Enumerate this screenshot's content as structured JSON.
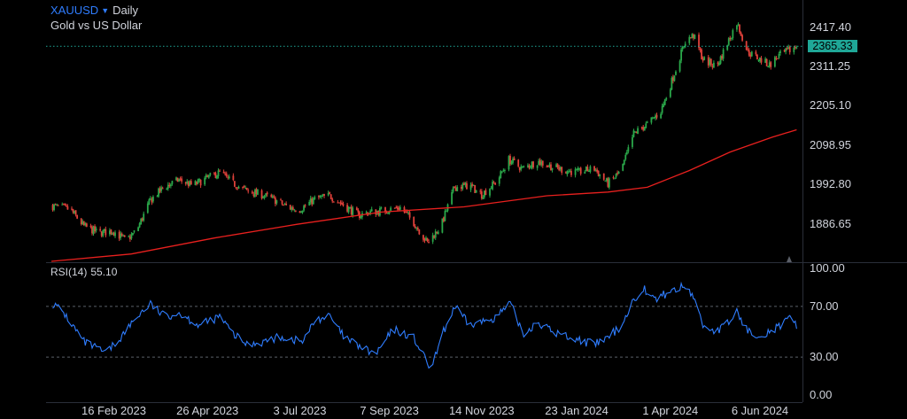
{
  "header": {
    "symbol": "XAUUSD",
    "interval": "Daily",
    "name": "Gold vs US Dollar",
    "rsi_label": "RSI(14)",
    "rsi_value": "55.10"
  },
  "colors": {
    "up": "#2aa84a",
    "down": "#e0413a",
    "ma": "#e8201e",
    "rsi": "#2f7dff",
    "last_price": "#1fa797",
    "grid_dash": "#5b5f68"
  },
  "chart_data": [
    {
      "type": "candlestick",
      "title": "XAUUSD Daily",
      "subtitle": "Gold vs US Dollar",
      "ylim": [
        1835,
        2470
      ],
      "y_ticks": [
        "2417.40",
        "2311.25",
        "2205.10",
        "2098.95",
        "1992.80",
        "1886.65"
      ],
      "last_price": "2365.33",
      "x_ticks": [
        "16 Feb 2023",
        "26 Apr 2023",
        "3 Jul 2023",
        "7 Sep 2023",
        "14 Nov 2023",
        "23 Jan 2024",
        "1 Apr 2024",
        "6 Jun 2024"
      ],
      "close_path": [
        [
          "2023-01-01",
          1935
        ],
        [
          "2023-01-15",
          1925
        ],
        [
          "2023-01-25",
          1880
        ],
        [
          "2023-02-05",
          1862
        ],
        [
          "2023-02-16",
          1866
        ],
        [
          "2023-02-25",
          1840
        ],
        [
          "2023-03-05",
          1870
        ],
        [
          "2023-03-15",
          1950
        ],
        [
          "2023-03-25",
          1985
        ],
        [
          "2023-04-05",
          2005
        ],
        [
          "2023-04-15",
          1990
        ],
        [
          "2023-04-26",
          2010
        ],
        [
          "2023-05-05",
          2025
        ],
        [
          "2023-05-15",
          1995
        ],
        [
          "2023-05-25",
          1975
        ],
        [
          "2023-06-05",
          1965
        ],
        [
          "2023-06-15",
          1950
        ],
        [
          "2023-06-25",
          1930
        ],
        [
          "2023-07-03",
          1925
        ],
        [
          "2023-07-15",
          1955
        ],
        [
          "2023-07-25",
          1962
        ],
        [
          "2023-08-05",
          1935
        ],
        [
          "2023-08-15",
          1910
        ],
        [
          "2023-08-25",
          1918
        ],
        [
          "2023-09-07",
          1925
        ],
        [
          "2023-09-15",
          1930
        ],
        [
          "2023-09-25",
          1890
        ],
        [
          "2023-10-05",
          1835
        ],
        [
          "2023-10-15",
          1880
        ],
        [
          "2023-10-25",
          1985
        ],
        [
          "2023-11-05",
          1990
        ],
        [
          "2023-11-14",
          1965
        ],
        [
          "2023-11-25",
          2000
        ],
        [
          "2023-12-04",
          2060
        ],
        [
          "2023-12-14",
          2035
        ],
        [
          "2023-12-25",
          2055
        ],
        [
          "2024-01-05",
          2040
        ],
        [
          "2024-01-15",
          2030
        ],
        [
          "2024-01-23",
          2025
        ],
        [
          "2024-02-05",
          2035
        ],
        [
          "2024-02-15",
          1995
        ],
        [
          "2024-02-25",
          2030
        ],
        [
          "2024-03-05",
          2130
        ],
        [
          "2024-03-15",
          2155
        ],
        [
          "2024-03-25",
          2190
        ],
        [
          "2024-04-01",
          2260
        ],
        [
          "2024-04-12",
          2380
        ],
        [
          "2024-04-18",
          2395
        ],
        [
          "2024-04-25",
          2330
        ],
        [
          "2024-05-05",
          2310
        ],
        [
          "2024-05-15",
          2390
        ],
        [
          "2024-05-20",
          2430
        ],
        [
          "2024-05-28",
          2350
        ],
        [
          "2024-06-06",
          2330
        ],
        [
          "2024-06-13",
          2315
        ],
        [
          "2024-06-20",
          2340
        ],
        [
          "2024-06-28",
          2355
        ],
        [
          "2024-07-03",
          2365
        ]
      ],
      "ma_path": [
        [
          "2023-01-01",
          1785
        ],
        [
          "2023-03-01",
          1805
        ],
        [
          "2023-05-01",
          1848
        ],
        [
          "2023-07-01",
          1885
        ],
        [
          "2023-09-01",
          1918
        ],
        [
          "2023-11-01",
          1932
        ],
        [
          "2024-01-01",
          1962
        ],
        [
          "2024-02-15",
          1972
        ],
        [
          "2024-03-15",
          1985
        ],
        [
          "2024-04-15",
          2030
        ],
        [
          "2024-05-15",
          2080
        ],
        [
          "2024-06-15",
          2120
        ],
        [
          "2024-07-03",
          2140
        ]
      ]
    },
    {
      "type": "line",
      "title": "RSI(14)",
      "ylim": [
        0,
        100
      ],
      "y_ticks": [
        "100.00",
        "70.00",
        "30.00",
        "0.00"
      ],
      "levels": [
        70,
        30
      ],
      "current": 55.1,
      "rsi_path": [
        [
          "2023-01-01",
          73
        ],
        [
          "2023-01-10",
          65
        ],
        [
          "2023-01-25",
          42
        ],
        [
          "2023-02-10",
          33
        ],
        [
          "2023-02-20",
          44
        ],
        [
          "2023-03-05",
          62
        ],
        [
          "2023-03-15",
          72
        ],
        [
          "2023-03-25",
          62
        ],
        [
          "2023-04-05",
          65
        ],
        [
          "2023-04-20",
          55
        ],
        [
          "2023-05-05",
          62
        ],
        [
          "2023-05-15",
          48
        ],
        [
          "2023-05-25",
          40
        ],
        [
          "2023-06-05",
          42
        ],
        [
          "2023-06-20",
          46
        ],
        [
          "2023-07-05",
          42
        ],
        [
          "2023-07-15",
          60
        ],
        [
          "2023-07-25",
          62
        ],
        [
          "2023-08-05",
          45
        ],
        [
          "2023-08-20",
          36
        ],
        [
          "2023-08-28",
          32
        ],
        [
          "2023-09-10",
          52
        ],
        [
          "2023-09-25",
          45
        ],
        [
          "2023-10-05",
          25
        ],
        [
          "2023-10-08",
          20
        ],
        [
          "2023-10-15",
          45
        ],
        [
          "2023-10-25",
          70
        ],
        [
          "2023-11-05",
          55
        ],
        [
          "2023-11-15",
          58
        ],
        [
          "2023-11-25",
          62
        ],
        [
          "2023-12-05",
          72
        ],
        [
          "2023-12-15",
          48
        ],
        [
          "2023-12-25",
          58
        ],
        [
          "2024-01-05",
          50
        ],
        [
          "2024-01-20",
          45
        ],
        [
          "2024-02-05",
          40
        ],
        [
          "2024-02-15",
          45
        ],
        [
          "2024-02-25",
          55
        ],
        [
          "2024-03-05",
          75
        ],
        [
          "2024-03-12",
          85
        ],
        [
          "2024-03-20",
          75
        ],
        [
          "2024-04-01",
          82
        ],
        [
          "2024-04-12",
          86
        ],
        [
          "2024-04-18",
          78
        ],
        [
          "2024-04-25",
          55
        ],
        [
          "2024-05-05",
          50
        ],
        [
          "2024-05-15",
          58
        ],
        [
          "2024-05-20",
          66
        ],
        [
          "2024-05-28",
          50
        ],
        [
          "2024-06-06",
          48
        ],
        [
          "2024-06-13",
          50
        ],
        [
          "2024-06-20",
          54
        ],
        [
          "2024-06-28",
          60
        ],
        [
          "2024-07-03",
          55
        ]
      ]
    }
  ]
}
